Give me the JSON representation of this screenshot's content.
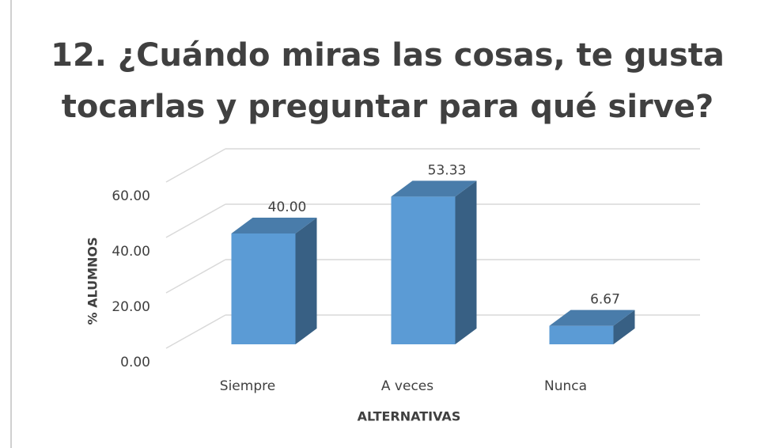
{
  "chart_data": {
    "type": "bar3d",
    "title": [
      "12. ¿Cuándo miras las cosas, te gusta",
      "tocarlas y preguntar para qué sirve?"
    ],
    "x_label": "ALTERNATIVAS",
    "y_label": "% ALUMNOS",
    "categories": [
      "Siempre",
      "A veces",
      "Nunca"
    ],
    "values": [
      40,
      53.33,
      6.67
    ],
    "value_labels": [
      "40.00",
      "53.33",
      "6.67"
    ],
    "color": "#5b9bd5",
    "ylim": [
      0,
      60
    ],
    "yticks": [
      {
        "value": 0,
        "label": "0.00"
      },
      {
        "value": 20,
        "label": "20.00"
      },
      {
        "value": 40,
        "label": "40.00"
      },
      {
        "value": 60,
        "label": "60.00"
      }
    ],
    "grid": true
  }
}
